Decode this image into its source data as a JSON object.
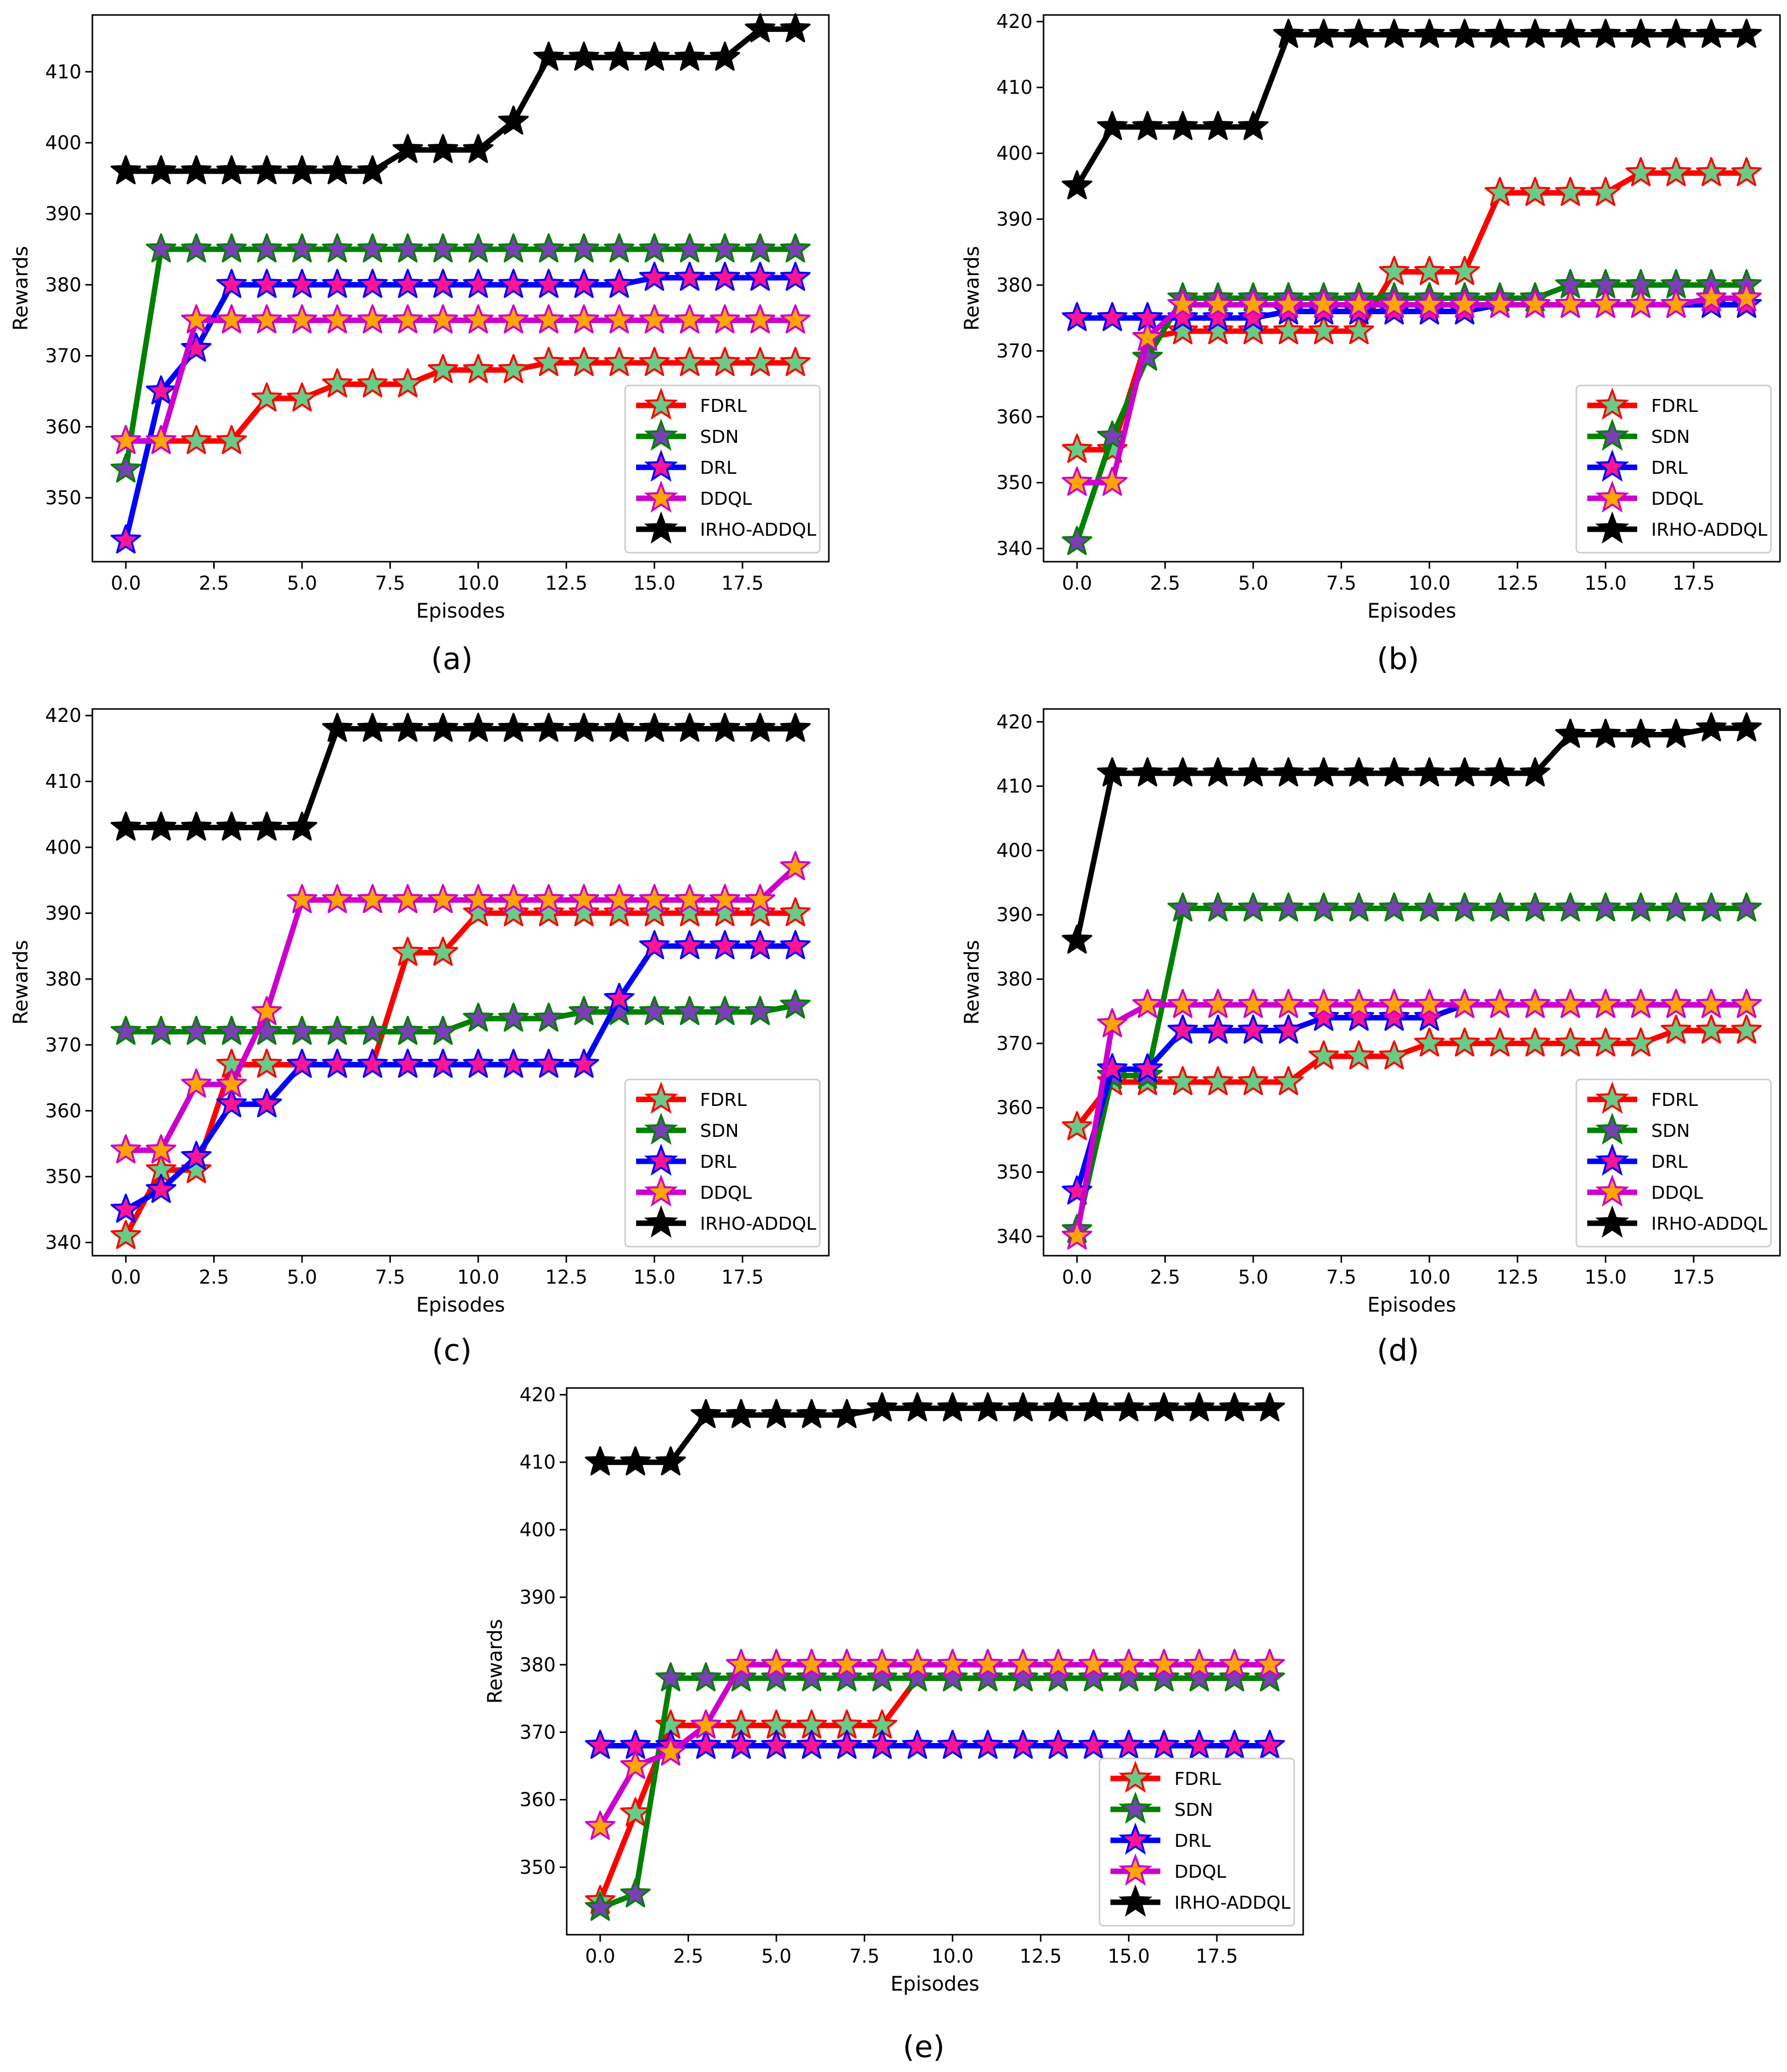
{
  "figure_labels": [
    "(a)",
    "(b)",
    "(c)",
    "(d)",
    "(e)"
  ],
  "colors": {
    "FDRL": {
      "line": "#ff0000",
      "marker_fill": "#66cc88",
      "marker_edge": "#ff0000"
    },
    "SDN": {
      "line": "#008000",
      "marker_fill": "#7b3fb5",
      "marker_edge": "#008000"
    },
    "DRL": {
      "line": "#0000ff",
      "marker_fill": "#ff1493",
      "marker_edge": "#0000ff"
    },
    "DDQL": {
      "line": "#cc00cc",
      "marker_fill": "#ffa500",
      "marker_edge": "#cc00cc"
    },
    "IRHO-ADDQL": {
      "line": "#000000",
      "marker_fill": "#000000",
      "marker_edge": "#000000"
    }
  },
  "chart_data": [
    {
      "id": "a",
      "type": "line",
      "xlabel": "Episodes",
      "ylabel": "Rewards",
      "xlim": [
        -0.95,
        19.95
      ],
      "ylim": [
        341,
        418
      ],
      "xticks": [
        0.0,
        2.5,
        5.0,
        7.5,
        10.0,
        12.5,
        15.0,
        17.5
      ],
      "xtick_labels": [
        "0.0",
        "2.5",
        "5.0",
        "7.5",
        "10.0",
        "12.5",
        "15.0",
        "17.5"
      ],
      "yticks": [
        350,
        360,
        370,
        380,
        390,
        400,
        410
      ],
      "ytick_labels": [
        "350",
        "360",
        "370",
        "380",
        "390",
        "400",
        "410"
      ],
      "legend_position": "bottom-right",
      "x": [
        0,
        1,
        2,
        3,
        4,
        5,
        6,
        7,
        8,
        9,
        10,
        11,
        12,
        13,
        14,
        15,
        16,
        17,
        18,
        19
      ],
      "series": [
        {
          "name": "FDRL",
          "values": [
            358,
            358,
            358,
            358,
            364,
            364,
            366,
            366,
            366,
            368,
            368,
            368,
            369,
            369,
            369,
            369,
            369,
            369,
            369,
            369
          ]
        },
        {
          "name": "SDN",
          "values": [
            354,
            385,
            385,
            385,
            385,
            385,
            385,
            385,
            385,
            385,
            385,
            385,
            385,
            385,
            385,
            385,
            385,
            385,
            385,
            385
          ]
        },
        {
          "name": "DRL",
          "values": [
            344,
            365,
            371,
            380,
            380,
            380,
            380,
            380,
            380,
            380,
            380,
            380,
            380,
            380,
            380,
            381,
            381,
            381,
            381,
            381
          ]
        },
        {
          "name": "DDQL",
          "values": [
            358,
            358,
            375,
            375,
            375,
            375,
            375,
            375,
            375,
            375,
            375,
            375,
            375,
            375,
            375,
            375,
            375,
            375,
            375,
            375
          ]
        },
        {
          "name": "IRHO-ADDQL",
          "values": [
            396,
            396,
            396,
            396,
            396,
            396,
            396,
            396,
            399,
            399,
            399,
            403,
            412,
            412,
            412,
            412,
            412,
            412,
            416,
            416
          ]
        }
      ]
    },
    {
      "id": "b",
      "type": "line",
      "xlabel": "Episodes",
      "ylabel": "Rewards",
      "xlim": [
        -0.95,
        19.95
      ],
      "ylim": [
        338,
        421
      ],
      "xticks": [
        0.0,
        2.5,
        5.0,
        7.5,
        10.0,
        12.5,
        15.0,
        17.5
      ],
      "xtick_labels": [
        "0.0",
        "2.5",
        "5.0",
        "7.5",
        "10.0",
        "12.5",
        "15.0",
        "17.5"
      ],
      "yticks": [
        340,
        350,
        360,
        370,
        380,
        390,
        400,
        410,
        420
      ],
      "ytick_labels": [
        "340",
        "350",
        "360",
        "370",
        "380",
        "390",
        "400",
        "410",
        "420"
      ],
      "legend_position": "bottom-right",
      "x": [
        0,
        1,
        2,
        3,
        4,
        5,
        6,
        7,
        8,
        9,
        10,
        11,
        12,
        13,
        14,
        15,
        16,
        17,
        18,
        19
      ],
      "series": [
        {
          "name": "FDRL",
          "values": [
            355,
            355,
            372,
            373,
            373,
            373,
            373,
            373,
            373,
            382,
            382,
            382,
            394,
            394,
            394,
            394,
            397,
            397,
            397,
            397
          ]
        },
        {
          "name": "SDN",
          "values": [
            341,
            357,
            369,
            378,
            378,
            378,
            378,
            378,
            378,
            378,
            378,
            378,
            378,
            378,
            380,
            380,
            380,
            380,
            380,
            380
          ]
        },
        {
          "name": "DRL",
          "values": [
            375,
            375,
            375,
            375,
            375,
            375,
            376,
            376,
            376,
            376,
            376,
            376,
            377,
            377,
            377,
            377,
            377,
            377,
            377,
            377
          ]
        },
        {
          "name": "DDQL",
          "values": [
            350,
            350,
            372,
            377,
            377,
            377,
            377,
            377,
            377,
            377,
            377,
            377,
            377,
            377,
            377,
            377,
            377,
            377,
            378,
            378
          ]
        },
        {
          "name": "IRHO-ADDQL",
          "values": [
            395,
            404,
            404,
            404,
            404,
            404,
            418,
            418,
            418,
            418,
            418,
            418,
            418,
            418,
            418,
            418,
            418,
            418,
            418,
            418
          ]
        }
      ]
    },
    {
      "id": "c",
      "type": "line",
      "xlabel": "Episodes",
      "ylabel": "Rewards",
      "xlim": [
        -0.95,
        19.95
      ],
      "ylim": [
        338,
        421
      ],
      "xticks": [
        0.0,
        2.5,
        5.0,
        7.5,
        10.0,
        12.5,
        15.0,
        17.5
      ],
      "xtick_labels": [
        "0.0",
        "2.5",
        "5.0",
        "7.5",
        "10.0",
        "12.5",
        "15.0",
        "17.5"
      ],
      "yticks": [
        340,
        350,
        360,
        370,
        380,
        390,
        400,
        410,
        420
      ],
      "ytick_labels": [
        "340",
        "350",
        "360",
        "370",
        "380",
        "390",
        "400",
        "410",
        "420"
      ],
      "legend_position": "bottom-right",
      "x": [
        0,
        1,
        2,
        3,
        4,
        5,
        6,
        7,
        8,
        9,
        10,
        11,
        12,
        13,
        14,
        15,
        16,
        17,
        18,
        19
      ],
      "series": [
        {
          "name": "FDRL",
          "values": [
            341,
            351,
            351,
            367,
            367,
            367,
            367,
            367,
            384,
            384,
            390,
            390,
            390,
            390,
            390,
            390,
            390,
            390,
            390,
            390
          ]
        },
        {
          "name": "SDN",
          "values": [
            372,
            372,
            372,
            372,
            372,
            372,
            372,
            372,
            372,
            372,
            374,
            374,
            374,
            375,
            375,
            375,
            375,
            375,
            375,
            376
          ]
        },
        {
          "name": "DRL",
          "values": [
            345,
            348,
            353,
            361,
            361,
            367,
            367,
            367,
            367,
            367,
            367,
            367,
            367,
            367,
            377,
            385,
            385,
            385,
            385,
            385
          ]
        },
        {
          "name": "DDQL",
          "values": [
            354,
            354,
            364,
            364,
            375,
            392,
            392,
            392,
            392,
            392,
            392,
            392,
            392,
            392,
            392,
            392,
            392,
            392,
            392,
            397
          ]
        },
        {
          "name": "IRHO-ADDQL",
          "values": [
            403,
            403,
            403,
            403,
            403,
            403,
            418,
            418,
            418,
            418,
            418,
            418,
            418,
            418,
            418,
            418,
            418,
            418,
            418,
            418
          ]
        }
      ]
    },
    {
      "id": "d",
      "type": "line",
      "xlabel": "Episodes",
      "ylabel": "Rewards",
      "xlim": [
        -0.95,
        19.95
      ],
      "ylim": [
        337,
        422
      ],
      "xticks": [
        0.0,
        2.5,
        5.0,
        7.5,
        10.0,
        12.5,
        15.0,
        17.5
      ],
      "xtick_labels": [
        "0.0",
        "2.5",
        "5.0",
        "7.5",
        "10.0",
        "12.5",
        "15.0",
        "17.5"
      ],
      "yticks": [
        340,
        350,
        360,
        370,
        380,
        390,
        400,
        410,
        420
      ],
      "ytick_labels": [
        "340",
        "350",
        "360",
        "370",
        "380",
        "390",
        "400",
        "410",
        "420"
      ],
      "legend_position": "bottom-right",
      "x": [
        0,
        1,
        2,
        3,
        4,
        5,
        6,
        7,
        8,
        9,
        10,
        11,
        12,
        13,
        14,
        15,
        16,
        17,
        18,
        19
      ],
      "series": [
        {
          "name": "FDRL",
          "values": [
            357,
            364,
            364,
            364,
            364,
            364,
            364,
            368,
            368,
            368,
            370,
            370,
            370,
            370,
            370,
            370,
            370,
            372,
            372,
            372
          ]
        },
        {
          "name": "SDN",
          "values": [
            341,
            365,
            365,
            391,
            391,
            391,
            391,
            391,
            391,
            391,
            391,
            391,
            391,
            391,
            391,
            391,
            391,
            391,
            391,
            391
          ]
        },
        {
          "name": "DRL",
          "values": [
            347,
            366,
            366,
            372,
            372,
            372,
            372,
            374,
            374,
            374,
            374,
            376,
            376,
            376,
            376,
            376,
            376,
            376,
            376,
            376
          ]
        },
        {
          "name": "DDQL",
          "values": [
            340,
            373,
            376,
            376,
            376,
            376,
            376,
            376,
            376,
            376,
            376,
            376,
            376,
            376,
            376,
            376,
            376,
            376,
            376,
            376
          ]
        },
        {
          "name": "IRHO-ADDQL",
          "values": [
            386,
            412,
            412,
            412,
            412,
            412,
            412,
            412,
            412,
            412,
            412,
            412,
            412,
            412,
            418,
            418,
            418,
            418,
            419,
            419
          ]
        }
      ]
    },
    {
      "id": "e",
      "type": "line",
      "xlabel": "Episodes",
      "ylabel": "Rewards",
      "xlim": [
        -0.95,
        19.95
      ],
      "ylim": [
        340,
        421
      ],
      "xticks": [
        0.0,
        2.5,
        5.0,
        7.5,
        10.0,
        12.5,
        15.0,
        17.5
      ],
      "xtick_labels": [
        "0.0",
        "2.5",
        "5.0",
        "7.5",
        "10.0",
        "12.5",
        "15.0",
        "17.5"
      ],
      "yticks": [
        350,
        360,
        370,
        380,
        390,
        400,
        410,
        420
      ],
      "ytick_labels": [
        "350",
        "360",
        "370",
        "380",
        "390",
        "400",
        "410",
        "420"
      ],
      "legend_position": "bottom-right",
      "x": [
        0,
        1,
        2,
        3,
        4,
        5,
        6,
        7,
        8,
        9,
        10,
        11,
        12,
        13,
        14,
        15,
        16,
        17,
        18,
        19
      ],
      "series": [
        {
          "name": "FDRL",
          "values": [
            345,
            358,
            371,
            371,
            371,
            371,
            371,
            371,
            371,
            378,
            378,
            378,
            378,
            378,
            378,
            378,
            378,
            378,
            378,
            378
          ]
        },
        {
          "name": "SDN",
          "values": [
            344,
            346,
            378,
            378,
            378,
            378,
            378,
            378,
            378,
            378,
            378,
            378,
            378,
            378,
            378,
            378,
            378,
            378,
            378,
            378
          ]
        },
        {
          "name": "DRL",
          "values": [
            368,
            368,
            368,
            368,
            368,
            368,
            368,
            368,
            368,
            368,
            368,
            368,
            368,
            368,
            368,
            368,
            368,
            368,
            368,
            368
          ]
        },
        {
          "name": "DDQL",
          "values": [
            356,
            365,
            367,
            371,
            380,
            380,
            380,
            380,
            380,
            380,
            380,
            380,
            380,
            380,
            380,
            380,
            380,
            380,
            380,
            380
          ]
        },
        {
          "name": "IRHO-ADDQL",
          "values": [
            410,
            410,
            410,
            417,
            417,
            417,
            417,
            417,
            418,
            418,
            418,
            418,
            418,
            418,
            418,
            418,
            418,
            418,
            418,
            418
          ]
        }
      ]
    }
  ]
}
